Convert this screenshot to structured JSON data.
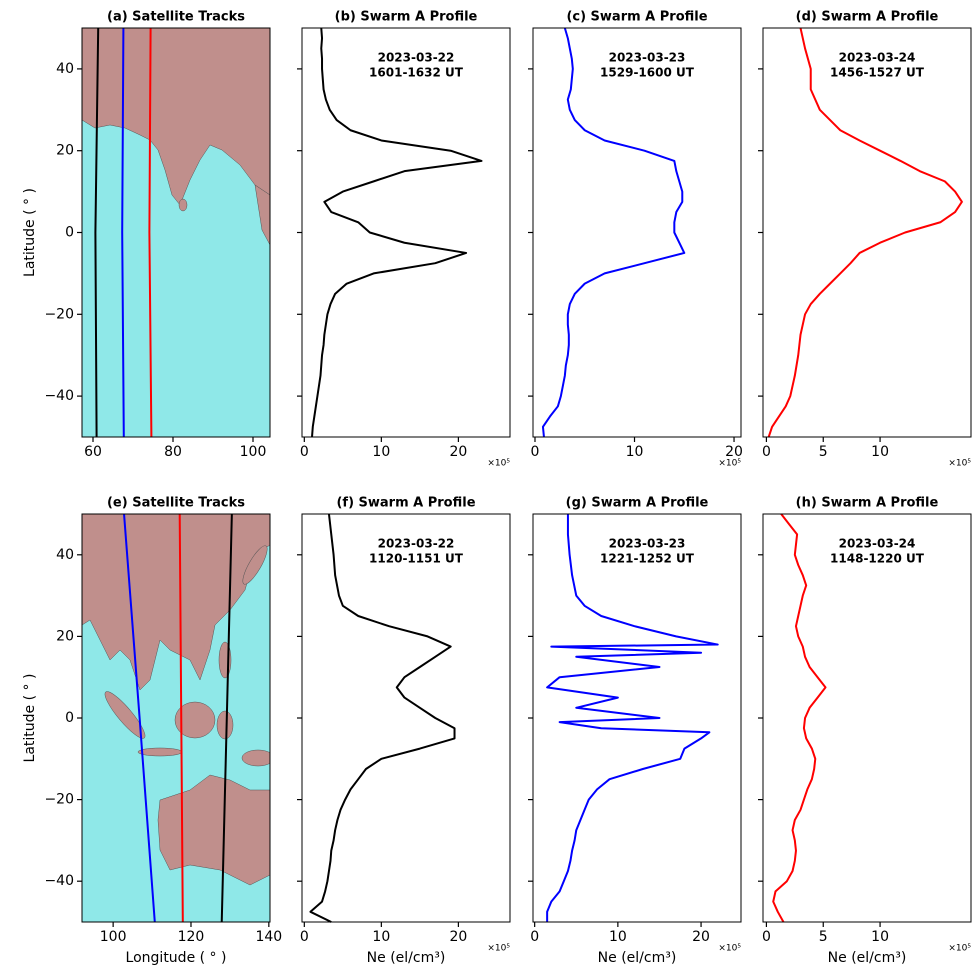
{
  "chart_data": [
    {
      "type": "map",
      "title": "(a) Satellite Tracks",
      "ylabel": "Latitude ( ° )",
      "xlim": [
        57.25,
        104.25
      ],
      "xticks": [
        60,
        80,
        100
      ],
      "ylim": [
        -50,
        50
      ],
      "yticks": [
        {
          "value": -40,
          "label": "−40"
        },
        {
          "value": -20,
          "label": "−20"
        },
        0,
        20,
        40
      ],
      "y": [
        50,
        0,
        -50
      ],
      "series": [
        {
          "color": "#000000",
          "x": [
            61.3,
            60.6,
            60.9
          ]
        },
        {
          "color": "#0000ff",
          "x": [
            67.6,
            67.3,
            67.7
          ]
        },
        {
          "color": "#ff0000",
          "x": [
            74.4,
            74.1,
            74.6
          ]
        }
      ]
    },
    {
      "type": "profile",
      "title": "(b) Swarm A Profile",
      "annotation": [
        "2023-03-22",
        "1601-1632 UT"
      ],
      "offset_text": "×10⁵",
      "color": "#000000",
      "xlim": [
        -0.3,
        26.7
      ],
      "xticks": [
        0,
        10,
        20
      ],
      "ylim": [
        -50,
        50
      ],
      "yticks": [
        -40,
        -20,
        0,
        20,
        40
      ],
      "y": [
        50,
        47.5,
        45,
        42.5,
        40,
        37.5,
        35,
        32.5,
        30,
        27.5,
        25,
        22.5,
        20,
        17.5,
        15,
        12.5,
        10,
        7.5,
        5,
        2.5,
        0,
        -2.5,
        -5,
        -7.5,
        -10,
        -12.5,
        -15,
        -17.5,
        -20,
        -22.5,
        -25,
        -27.5,
        -30,
        -32.5,
        -35,
        -37.5,
        -40,
        -42.5,
        -45,
        -47.5,
        -50
      ],
      "values": [
        2.2,
        2.3,
        2.2,
        2.3,
        2.3,
        2.4,
        2.5,
        2.8,
        3.3,
        4.2,
        6,
        10,
        19,
        23,
        13,
        9,
        5,
        2.6,
        3.5,
        7,
        8.5,
        13,
        21,
        17,
        9,
        5.5,
        4,
        3.4,
        3.0,
        2.8,
        2.6,
        2.5,
        2.3,
        2.2,
        2.1,
        1.9,
        1.7,
        1.5,
        1.3,
        1.1,
        1.0
      ]
    },
    {
      "type": "profile",
      "title": "(c) Swarm A Profile",
      "annotation": [
        "2023-03-23",
        "1529-1600 UT"
      ],
      "offset_text": "×10⁵",
      "color": "#0000ff",
      "xlim": [
        -0.2,
        20.7
      ],
      "xticks": [
        0,
        10,
        20
      ],
      "ylim": [
        -50,
        50
      ],
      "yticks": [
        -40,
        -20,
        0,
        20,
        40
      ],
      "y": [
        50,
        47.5,
        45,
        42.5,
        40,
        37.5,
        35,
        32.5,
        30,
        27.5,
        25,
        22.5,
        20,
        17.5,
        15,
        12.5,
        10,
        7.5,
        5,
        2.5,
        0,
        -2.5,
        -5,
        -7.5,
        -10,
        -12.5,
        -15,
        -17.5,
        -20,
        -22.5,
        -25,
        -27.5,
        -30,
        -32.5,
        -35,
        -37.5,
        -40,
        -42.5,
        -45,
        -47.5,
        -50
      ],
      "values": [
        3,
        3.3,
        3.5,
        3.7,
        3.8,
        3.7,
        3.6,
        3.3,
        3.5,
        4,
        5,
        7,
        11,
        14,
        14.2,
        14.5,
        14.8,
        14.8,
        14.2,
        14,
        14,
        14.5,
        15,
        11,
        7,
        5,
        4,
        3.5,
        3.3,
        3.3,
        3.4,
        3.4,
        3.3,
        3.1,
        3.0,
        2.8,
        2.6,
        2.3,
        1.5,
        0.8,
        0.9
      ]
    },
    {
      "type": "profile",
      "title": "(d) Swarm A Profile",
      "annotation": [
        "2023-03-24",
        "1456-1527 UT"
      ],
      "offset_text": "×10⁵",
      "color": "#ff0000",
      "xlim": [
        -0.3,
        18
      ],
      "xticks": [
        0,
        5,
        10
      ],
      "ylim": [
        -50,
        50
      ],
      "yticks": [
        -40,
        -20,
        0,
        20,
        40
      ],
      "y": [
        50,
        45,
        40,
        35,
        30,
        25,
        22.5,
        20,
        17.5,
        15,
        12.5,
        10,
        7.5,
        5,
        2.5,
        0,
        -2.5,
        -5,
        -7.5,
        -10,
        -12.5,
        -15,
        -17.5,
        -20,
        -25,
        -30,
        -35,
        -40,
        -42.5,
        -45,
        -47.5,
        -50
      ],
      "values": [
        3.0,
        3.4,
        3.9,
        3.9,
        4.7,
        6.5,
        8.2,
        10,
        11.8,
        13.5,
        15.7,
        16.6,
        17.2,
        16.6,
        15.3,
        12.2,
        10,
        8.2,
        7.4,
        6.5,
        5.6,
        4.7,
        3.9,
        3.4,
        3.0,
        2.8,
        2.5,
        2.1,
        1.7,
        1.1,
        0.5,
        0.2
      ]
    },
    {
      "type": "map",
      "title": "(e) Satellite Tracks",
      "ylabel": "Latitude ( ° )",
      "xlabel": "Longitude ( ° )",
      "xlim": [
        92,
        140.3
      ],
      "xticks": [
        100,
        120,
        140
      ],
      "ylim": [
        -50,
        50
      ],
      "yticks": [
        {
          "value": -40,
          "label": "−40"
        },
        {
          "value": -20,
          "label": "−20"
        },
        0,
        20,
        40
      ],
      "y": [
        50,
        0,
        -50
      ],
      "series": [
        {
          "color": "#0000ff",
          "x": [
            102.8,
            106.8,
            110.7
          ]
        },
        {
          "color": "#ff0000",
          "x": [
            117.1,
            117.5,
            117.9
          ]
        },
        {
          "color": "#000000",
          "x": [
            130.5,
            129.2,
            127.9
          ]
        }
      ]
    },
    {
      "type": "profile",
      "title": "(f) Swarm A Profile",
      "annotation": [
        "2023-03-22",
        "1120-1151 UT"
      ],
      "offset_text": "×10⁵",
      "color": "#000000",
      "xlabel": "Ne (el/cm³)",
      "xlim": [
        -0.3,
        26.7
      ],
      "xticks": [
        0,
        10,
        20
      ],
      "ylim": [
        -50,
        50
      ],
      "yticks": [
        -40,
        -20,
        0,
        20,
        40
      ],
      "y": [
        50,
        45,
        40,
        35,
        30,
        27.5,
        25,
        22.5,
        20,
        17.5,
        15,
        12.5,
        10,
        7.5,
        5,
        2.5,
        0,
        -2.5,
        -5,
        -7.5,
        -10,
        -12.5,
        -15,
        -17.5,
        -20,
        -22.5,
        -25,
        -27.5,
        -30,
        -32.5,
        -35,
        -37.5,
        -40,
        -42.5,
        -45,
        -47.5,
        -50
      ],
      "values": [
        3.2,
        3.5,
        3.8,
        4,
        4.5,
        5,
        7,
        11,
        16,
        19,
        17,
        15,
        13,
        12,
        13,
        15,
        17,
        19.5,
        19.5,
        15,
        10,
        8,
        7,
        6,
        5.3,
        4.7,
        4.3,
        4,
        3.8,
        3.5,
        3.4,
        3.2,
        3.0,
        2.7,
        2.3,
        0.8,
        3.5
      ]
    },
    {
      "type": "profile",
      "title": "(g) Swarm A Profile",
      "annotation": [
        "2023-03-23",
        "1221-1252 UT"
      ],
      "offset_text": "×10⁵",
      "color": "#0000ff",
      "xlabel": "Ne (el/cm³)",
      "xlim": [
        -0.2,
        24.8
      ],
      "xticks": [
        0,
        10,
        20
      ],
      "ylim": [
        -50,
        50
      ],
      "yticks": [
        -40,
        -20,
        0,
        20,
        40
      ],
      "y": [
        50,
        45,
        40,
        35,
        30,
        27.5,
        25,
        22.5,
        20,
        18,
        17.5,
        16,
        15,
        12.5,
        10,
        7.5,
        5,
        2.5,
        0,
        -1,
        -2.5,
        -3.5,
        -5,
        -7.5,
        -10,
        -12.5,
        -15,
        -17.5,
        -20,
        -22.5,
        -25,
        -27.5,
        -30,
        -32.5,
        -35,
        -37.5,
        -40,
        -42.5,
        -45,
        -47.5,
        -50
      ],
      "values": [
        4,
        4,
        4.2,
        4.5,
        5,
        6,
        8,
        12,
        17,
        22,
        2,
        20,
        5,
        15,
        3,
        1.5,
        10,
        5,
        15,
        3,
        8,
        21,
        20,
        18,
        17.5,
        13,
        9,
        7.5,
        6.5,
        6,
        5.5,
        5,
        4.8,
        4.5,
        4.3,
        4,
        3.5,
        3,
        2,
        1.5,
        1.5
      ]
    },
    {
      "type": "profile",
      "title": "(h) Swarm A Profile",
      "annotation": [
        "2023-03-24",
        "1148-1220 UT"
      ],
      "offset_text": "×10⁵",
      "color": "#ff0000",
      "xlabel": "Ne (el/cm³)",
      "xlim": [
        -0.3,
        18
      ],
      "xticks": [
        0,
        5,
        10
      ],
      "ylim": [
        -50,
        50
      ],
      "yticks": [
        -40,
        -20,
        0,
        20,
        40
      ],
      "y": [
        50,
        47.5,
        45,
        42.5,
        40,
        37.5,
        35,
        32.5,
        30,
        27.5,
        25,
        22.5,
        20,
        17.5,
        15,
        12.5,
        10,
        7.5,
        5,
        2.5,
        0,
        -2.5,
        -5,
        -7.5,
        -10,
        -12.5,
        -15,
        -17.5,
        -20,
        -22.5,
        -25,
        -27.5,
        -30,
        -32.5,
        -35,
        -37.5,
        -40,
        -42.5,
        -45,
        -47.5,
        -50
      ],
      "values": [
        1.3,
        2,
        2.7,
        2.6,
        2.5,
        2.8,
        3.2,
        3.5,
        3.2,
        3.0,
        2.8,
        2.6,
        2.8,
        3.2,
        3.4,
        3.8,
        4.5,
        5.2,
        4.5,
        3.8,
        3.4,
        3.3,
        3.5,
        4,
        4.3,
        4.2,
        4,
        3.6,
        3.3,
        3,
        2.5,
        2.3,
        2.5,
        2.6,
        2.5,
        2.3,
        1.8,
        0.8,
        0.6,
        1.0,
        1.5
      ]
    }
  ]
}
